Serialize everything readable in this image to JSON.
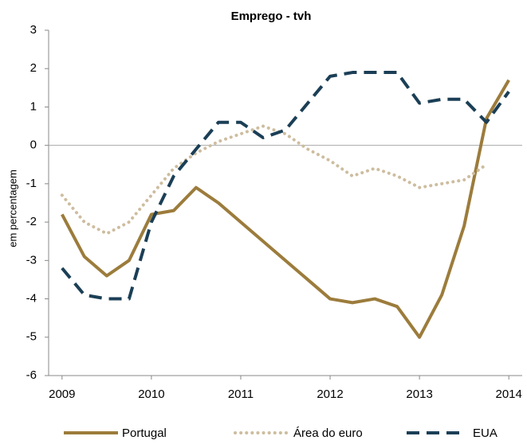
{
  "chart_data": {
    "type": "line",
    "title": "Emprego - tvh",
    "y_label": "em percentagem",
    "x": [
      2009,
      2009.25,
      2009.5,
      2009.75,
      2010,
      2010.25,
      2010.5,
      2010.75,
      2011,
      2011.25,
      2011.5,
      2011.75,
      2012,
      2012.25,
      2012.5,
      2012.75,
      2013,
      2013.25,
      2013.5,
      2013.75,
      2014
    ],
    "series": [
      {
        "name": "Portugal",
        "color": "#9c7c3c",
        "style": "solid",
        "values": [
          -1.8,
          -2.9,
          -3.4,
          -3.0,
          -1.8,
          -1.7,
          -1.1,
          -1.5,
          -2.0,
          -2.5,
          -3.0,
          -3.5,
          -4.0,
          -4.1,
          -4.0,
          -4.2,
          -5.0,
          -3.9,
          -2.1,
          0.7,
          1.7
        ]
      },
      {
        "name": "Área do euro",
        "color": "#cdbd9f",
        "style": "dotted",
        "values": [
          -1.3,
          -2.0,
          -2.3,
          -2.0,
          -1.3,
          -0.6,
          -0.2,
          0.1,
          0.3,
          0.5,
          0.3,
          -0.1,
          -0.4,
          -0.8,
          -0.6,
          -0.8,
          -1.1,
          -1.0,
          -0.9,
          -0.5,
          null
        ]
      },
      {
        "name": "EUA",
        "color": "#1b3f56",
        "style": "dashed",
        "values": [
          -3.2,
          -3.9,
          -4.0,
          -4.0,
          -2.0,
          -0.8,
          -0.1,
          0.6,
          0.6,
          0.2,
          0.4,
          1.1,
          1.8,
          1.9,
          1.9,
          1.9,
          1.1,
          1.2,
          1.2,
          0.6,
          1.4
        ]
      }
    ],
    "xlim": [
      2008.85,
      2014.15
    ],
    "xticks": [
      2009,
      2010,
      2011,
      2012,
      2013,
      2014
    ],
    "ylim": [
      -6,
      3
    ],
    "yticks": [
      -6,
      -5,
      -4,
      -3,
      -2,
      -1,
      0,
      1,
      2,
      3
    ],
    "zero_line": true,
    "legend": "bottom"
  }
}
